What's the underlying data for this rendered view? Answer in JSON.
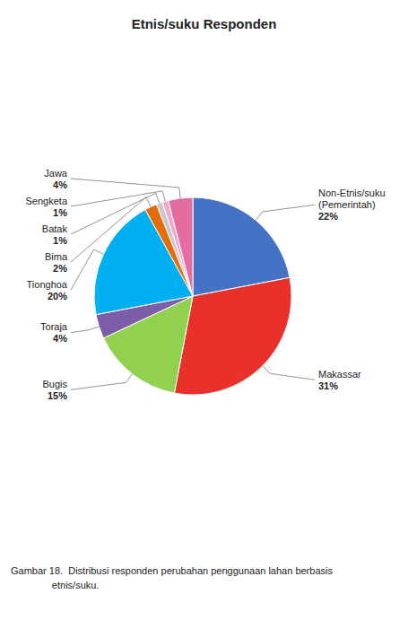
{
  "chart_data": {
    "type": "pie",
    "title": "Etnis/suku Responden",
    "categories": [
      "Non-Etnis/suku\n(Pemerintah)",
      "Makassar",
      "Bugis",
      "Toraja",
      "Tionghoa",
      "Bima",
      "Batak",
      "Sengketa",
      "Jawa"
    ],
    "values": [
      22,
      31,
      15,
      4,
      20,
      2,
      1,
      1,
      4
    ],
    "value_labels": [
      "22%",
      "31%",
      "15%",
      "4%",
      "20%",
      "2%",
      "1%",
      "1%",
      "4%"
    ],
    "colors": [
      "#4472C4",
      "#E8312A",
      "#92D050",
      "#7B5EA7",
      "#00B0F0",
      "#E46C0A",
      "#C8C8C8",
      "#F0AACC",
      "#E46CA0"
    ],
    "data_labels": true,
    "annotations": [
      "Gambar 18.  Distribusi responden perubahan penggunaan lahan berbasis",
      "               etnis/suku."
    ]
  }
}
